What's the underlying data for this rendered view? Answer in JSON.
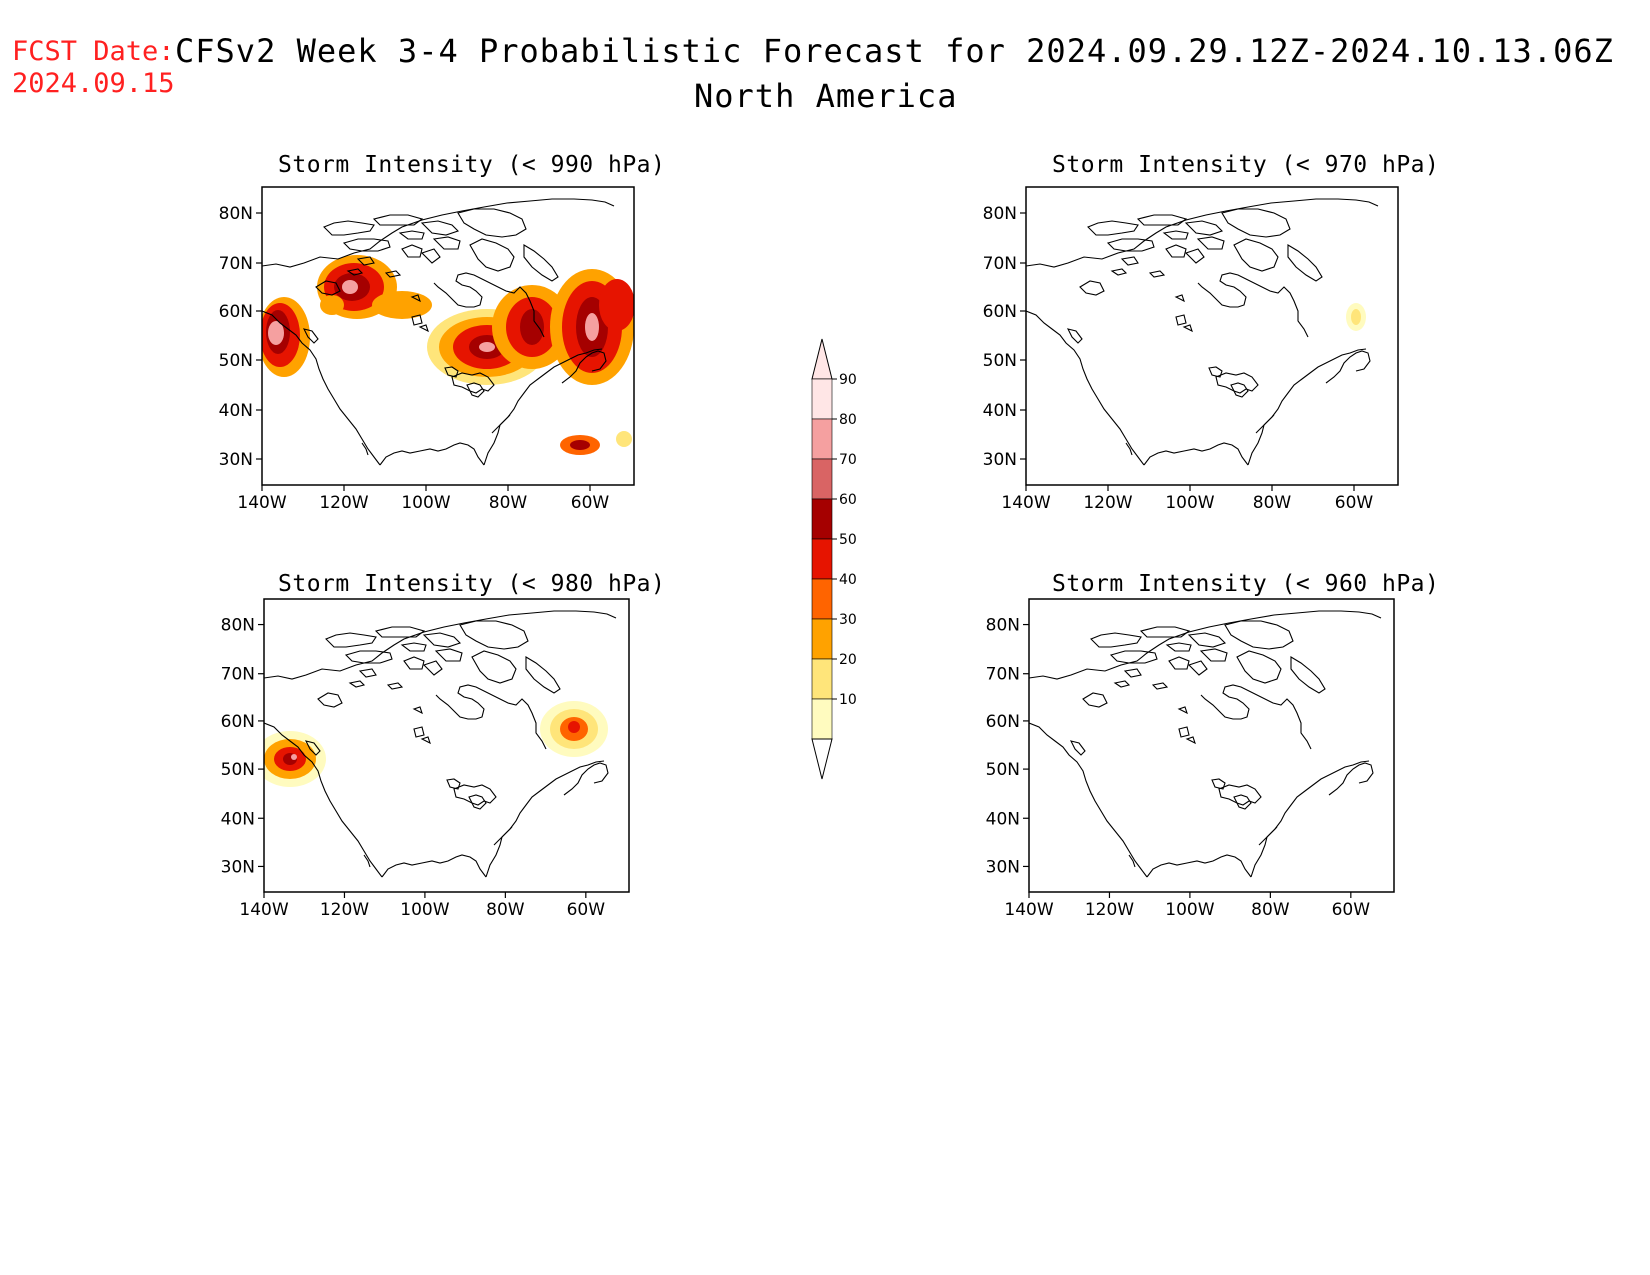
{
  "header": {
    "fcst_label": "FCST Date:",
    "fcst_date": "2024.09.15",
    "title": "CFSv2 Week 3-4 Probabilistic Forecast for 2024.09.29.12Z-2024.10.13.06Z",
    "subtitle": "North America"
  },
  "axes": {
    "lat_labels": [
      "80N",
      "70N",
      "60N",
      "50N",
      "40N",
      "30N"
    ],
    "lon_labels": [
      "140W",
      "120W",
      "100W",
      "80W",
      "60W"
    ]
  },
  "panels": [
    {
      "title": "Storm Intensity (< 990 hPa)",
      "coverage": "widespread"
    },
    {
      "title": "Storm Intensity (< 970 hPa)",
      "coverage": "isolated"
    },
    {
      "title": "Storm Intensity (< 980 hPa)",
      "coverage": "scattered"
    },
    {
      "title": "Storm Intensity (< 960 hPa)",
      "coverage": "none"
    }
  ],
  "colorbar": {
    "levels": [
      "10",
      "20",
      "30",
      "40",
      "50",
      "60",
      "70",
      "80",
      "90"
    ],
    "colors": [
      "#fffbbf",
      "#ffe57a",
      "#ffa200",
      "#ff6400",
      "#e61400",
      "#a50000",
      "#d96464",
      "#f5a0a0",
      "#ffe6e6"
    ]
  }
}
